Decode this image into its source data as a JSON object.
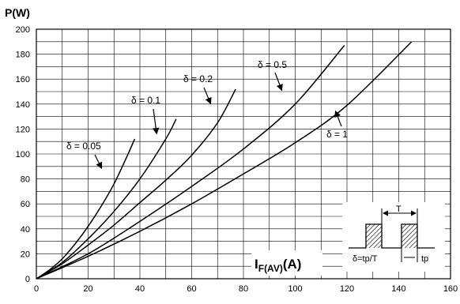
{
  "chart_data": {
    "type": "line",
    "ylabel": "P(W)",
    "xlabel": {
      "main": "I",
      "sub": "F(AV)",
      "unit": "(A)"
    },
    "xlim": [
      0,
      160
    ],
    "ylim": [
      0,
      200
    ],
    "x_ticks": [
      0,
      20,
      40,
      60,
      80,
      100,
      120,
      140,
      160
    ],
    "y_ticks": [
      0,
      20,
      40,
      60,
      80,
      100,
      120,
      140,
      160,
      180,
      200
    ],
    "grid": true,
    "series": [
      {
        "name": "δ = 0.05",
        "x": [
          0,
          5,
          10,
          15,
          20,
          25,
          30,
          35,
          38
        ],
        "y": [
          0,
          7,
          16,
          28,
          42,
          58,
          76,
          98,
          112
        ]
      },
      {
        "name": "δ = 0.1",
        "x": [
          0,
          10,
          20,
          30,
          40,
          50,
          54
        ],
        "y": [
          0,
          13,
          32,
          54,
          80,
          112,
          128
        ]
      },
      {
        "name": "δ = 0.2",
        "x": [
          0,
          10,
          20,
          30,
          40,
          50,
          60,
          70,
          77
        ],
        "y": [
          0,
          12,
          27,
          43,
          61,
          79,
          99,
          125,
          152
        ]
      },
      {
        "name": "δ = 0.5",
        "x": [
          0,
          20,
          40,
          60,
          80,
          100,
          119
        ],
        "y": [
          0,
          20,
          46,
          74,
          104,
          140,
          187
        ]
      },
      {
        "name": "δ = 1",
        "x": [
          0,
          20,
          40,
          60,
          80,
          100,
          120,
          145
        ],
        "y": [
          0,
          18,
          38,
          60,
          84,
          109,
          139,
          190
        ]
      }
    ],
    "annotations": [
      {
        "text": "δ = 0.05",
        "series": 0
      },
      {
        "text": "δ = 0.1",
        "series": 1
      },
      {
        "text": "δ = 0.2",
        "series": 2
      },
      {
        "text": "δ = 0.5",
        "series": 3
      },
      {
        "text": "δ = 1",
        "series": 4
      }
    ],
    "inset": {
      "period_label": "T",
      "duty_label": "δ=tp/T",
      "pulse_label": "tp"
    }
  }
}
